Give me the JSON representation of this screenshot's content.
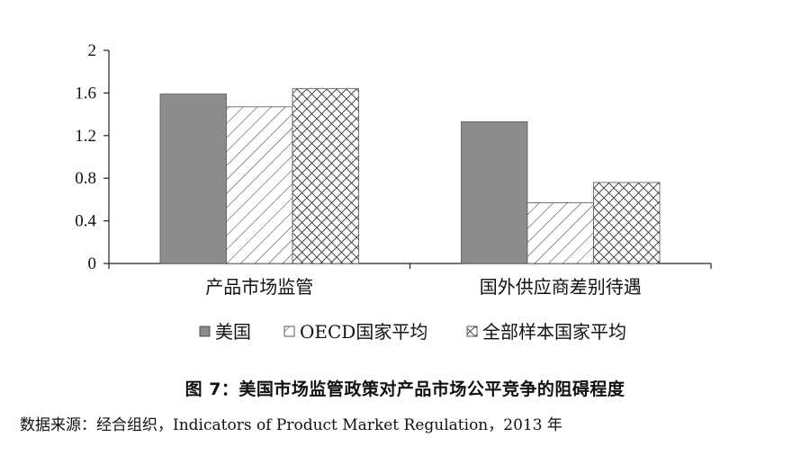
{
  "chart_data": {
    "type": "bar",
    "categories": [
      "产品市场监管",
      "国外供应商差别待遇"
    ],
    "series": [
      {
        "name": "美国",
        "values": [
          1.59,
          1.33
        ],
        "pattern": "solid-gray"
      },
      {
        "name": "OECD国家平均",
        "values": [
          1.47,
          0.57
        ],
        "pattern": "diagonal"
      },
      {
        "name": "全部样本国家平均",
        "values": [
          1.64,
          0.76
        ],
        "pattern": "crosshatch"
      }
    ],
    "yticks": [
      "0",
      "0.4",
      "0.8",
      "1.2",
      "1.6",
      "2"
    ],
    "ylim": [
      0,
      2
    ],
    "grid": false,
    "legend_position": "bottom",
    "colors": {
      "solid": "#8c8c8e",
      "stroke": "#222222",
      "pattern_line": "#333333"
    }
  },
  "caption": "图 7：美国市场监管政策对产品市场公平竞争的阻碍程度",
  "source": "数据来源：经合组织，Indicators of Product Market Regulation，2013 年"
}
